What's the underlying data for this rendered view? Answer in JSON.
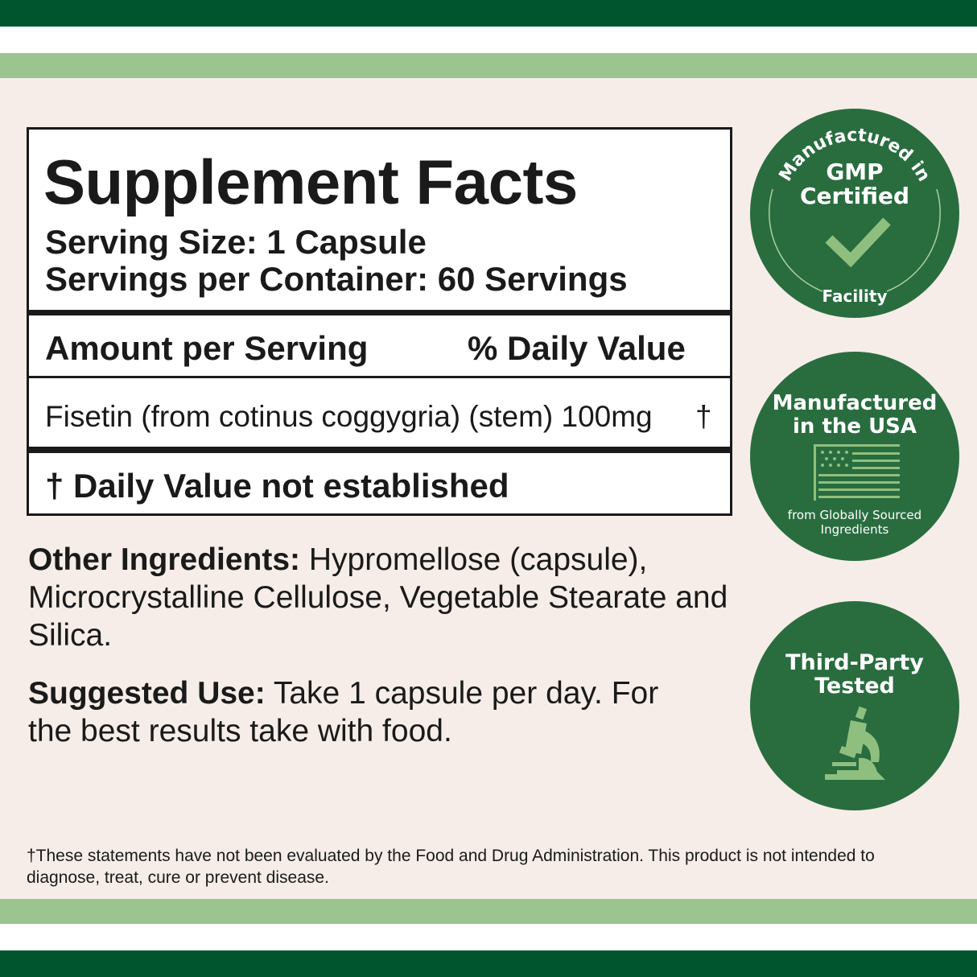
{
  "colors": {
    "dark_green": "#00552e",
    "light_green": "#9bc48e",
    "background": "#f6ede8",
    "badge_green": "#296d3f",
    "icon_green": "#8fbf7f"
  },
  "facts": {
    "title": "Supplement Facts",
    "serving_size": "Serving Size: 1 Capsule",
    "servings_per_container": "Servings per Container: 60 Servings",
    "amount_header": "Amount per Serving",
    "dv_header": "% Daily Value",
    "ingredient": "Fisetin (from cotinus coggygria) (stem) 100mg",
    "ingredient_dv": "†",
    "footnote": "† Daily Value not established"
  },
  "other_ingredients": {
    "label": "Other Ingredients:",
    "text": " Hypromellose (capsule), Microcrystalline Cellulose, Vegetable Stearate and Silica."
  },
  "suggested_use": {
    "label": "Suggested Use:",
    "text": " Take 1 capsule per day. For the best results take with food."
  },
  "badges": [
    {
      "arc_top": "Manufactured in",
      "title": "GMP Certified",
      "arc_bottom": "Facility",
      "icon": "checkmark-icon"
    },
    {
      "title": "Manufactured in the USA",
      "subtitle": "from Globally Sourced Ingredients",
      "icon": "us-flag-icon"
    },
    {
      "title": "Third-Party Tested",
      "icon": "microscope-icon"
    }
  ],
  "disclaimer": "†These statements have not been evaluated by the Food and Drug Administration. This product is not intended to diagnose, treat, cure or prevent disease."
}
